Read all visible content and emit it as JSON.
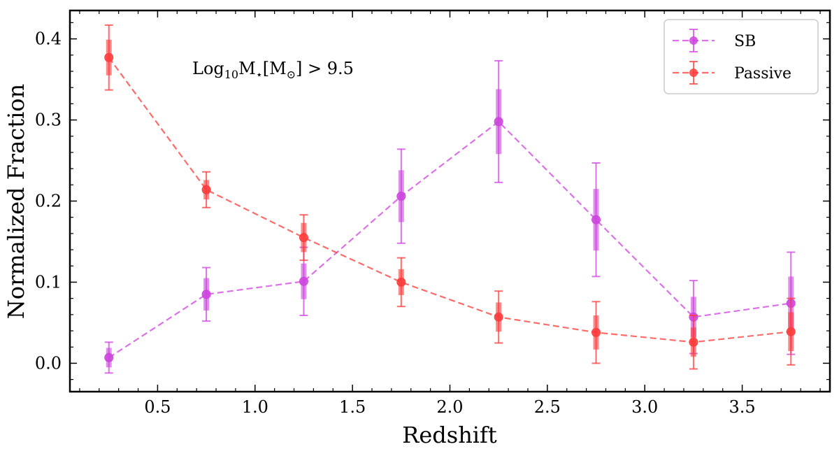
{
  "chart_data": {
    "type": "line",
    "title": "",
    "xlabel": "Redshift",
    "ylabel": "Normalized Fraction",
    "xlim": [
      0.05,
      3.95
    ],
    "ylim": [
      -0.035,
      0.435
    ],
    "xticks": [
      0.5,
      1.0,
      1.5,
      2.0,
      2.5,
      3.0,
      3.5
    ],
    "xtick_labels": [
      "0.5",
      "1.0",
      "1.5",
      "2.0",
      "2.5",
      "3.0",
      "3.5"
    ],
    "yticks": [
      0.0,
      0.1,
      0.2,
      0.3,
      0.4
    ],
    "ytick_labels": [
      "0.0",
      "0.1",
      "0.2",
      "0.3",
      "0.4"
    ],
    "grid": false,
    "legend_position": "top-right",
    "annotation": {
      "parts": [
        {
          "text": "Log",
          "style": "normal"
        },
        {
          "text": "10",
          "style": "sub"
        },
        {
          "text": "M",
          "style": "normal"
        },
        {
          "text": "⋆",
          "style": "sub"
        },
        {
          "text": "[M",
          "style": "normal"
        },
        {
          "text": "⊙",
          "style": "sub"
        },
        {
          "text": "] > 9.5",
          "style": "normal"
        }
      ]
    },
    "series": [
      {
        "name": "SB",
        "color": "#cc44dd",
        "x": [
          0.25,
          0.75,
          1.25,
          1.75,
          2.25,
          2.75,
          3.25,
          3.75
        ],
        "y": [
          0.007,
          0.085,
          0.101,
          0.206,
          0.298,
          0.177,
          0.057,
          0.074
        ],
        "err_inner": [
          0.012,
          0.02,
          0.022,
          0.032,
          0.04,
          0.038,
          0.025,
          0.033
        ],
        "err_outer": [
          0.019,
          0.033,
          0.042,
          0.058,
          0.075,
          0.07,
          0.045,
          0.063
        ]
      },
      {
        "name": "Passive",
        "color": "#ff3b3b",
        "x": [
          0.25,
          0.75,
          1.25,
          1.75,
          2.25,
          2.75,
          3.25,
          3.75
        ],
        "y": [
          0.377,
          0.214,
          0.155,
          0.1,
          0.057,
          0.038,
          0.026,
          0.039
        ],
        "err_inner": [
          0.022,
          0.012,
          0.018,
          0.016,
          0.018,
          0.021,
          0.018,
          0.024
        ],
        "err_outer": [
          0.04,
          0.022,
          0.028,
          0.03,
          0.032,
          0.038,
          0.033,
          0.041
        ]
      }
    ]
  }
}
